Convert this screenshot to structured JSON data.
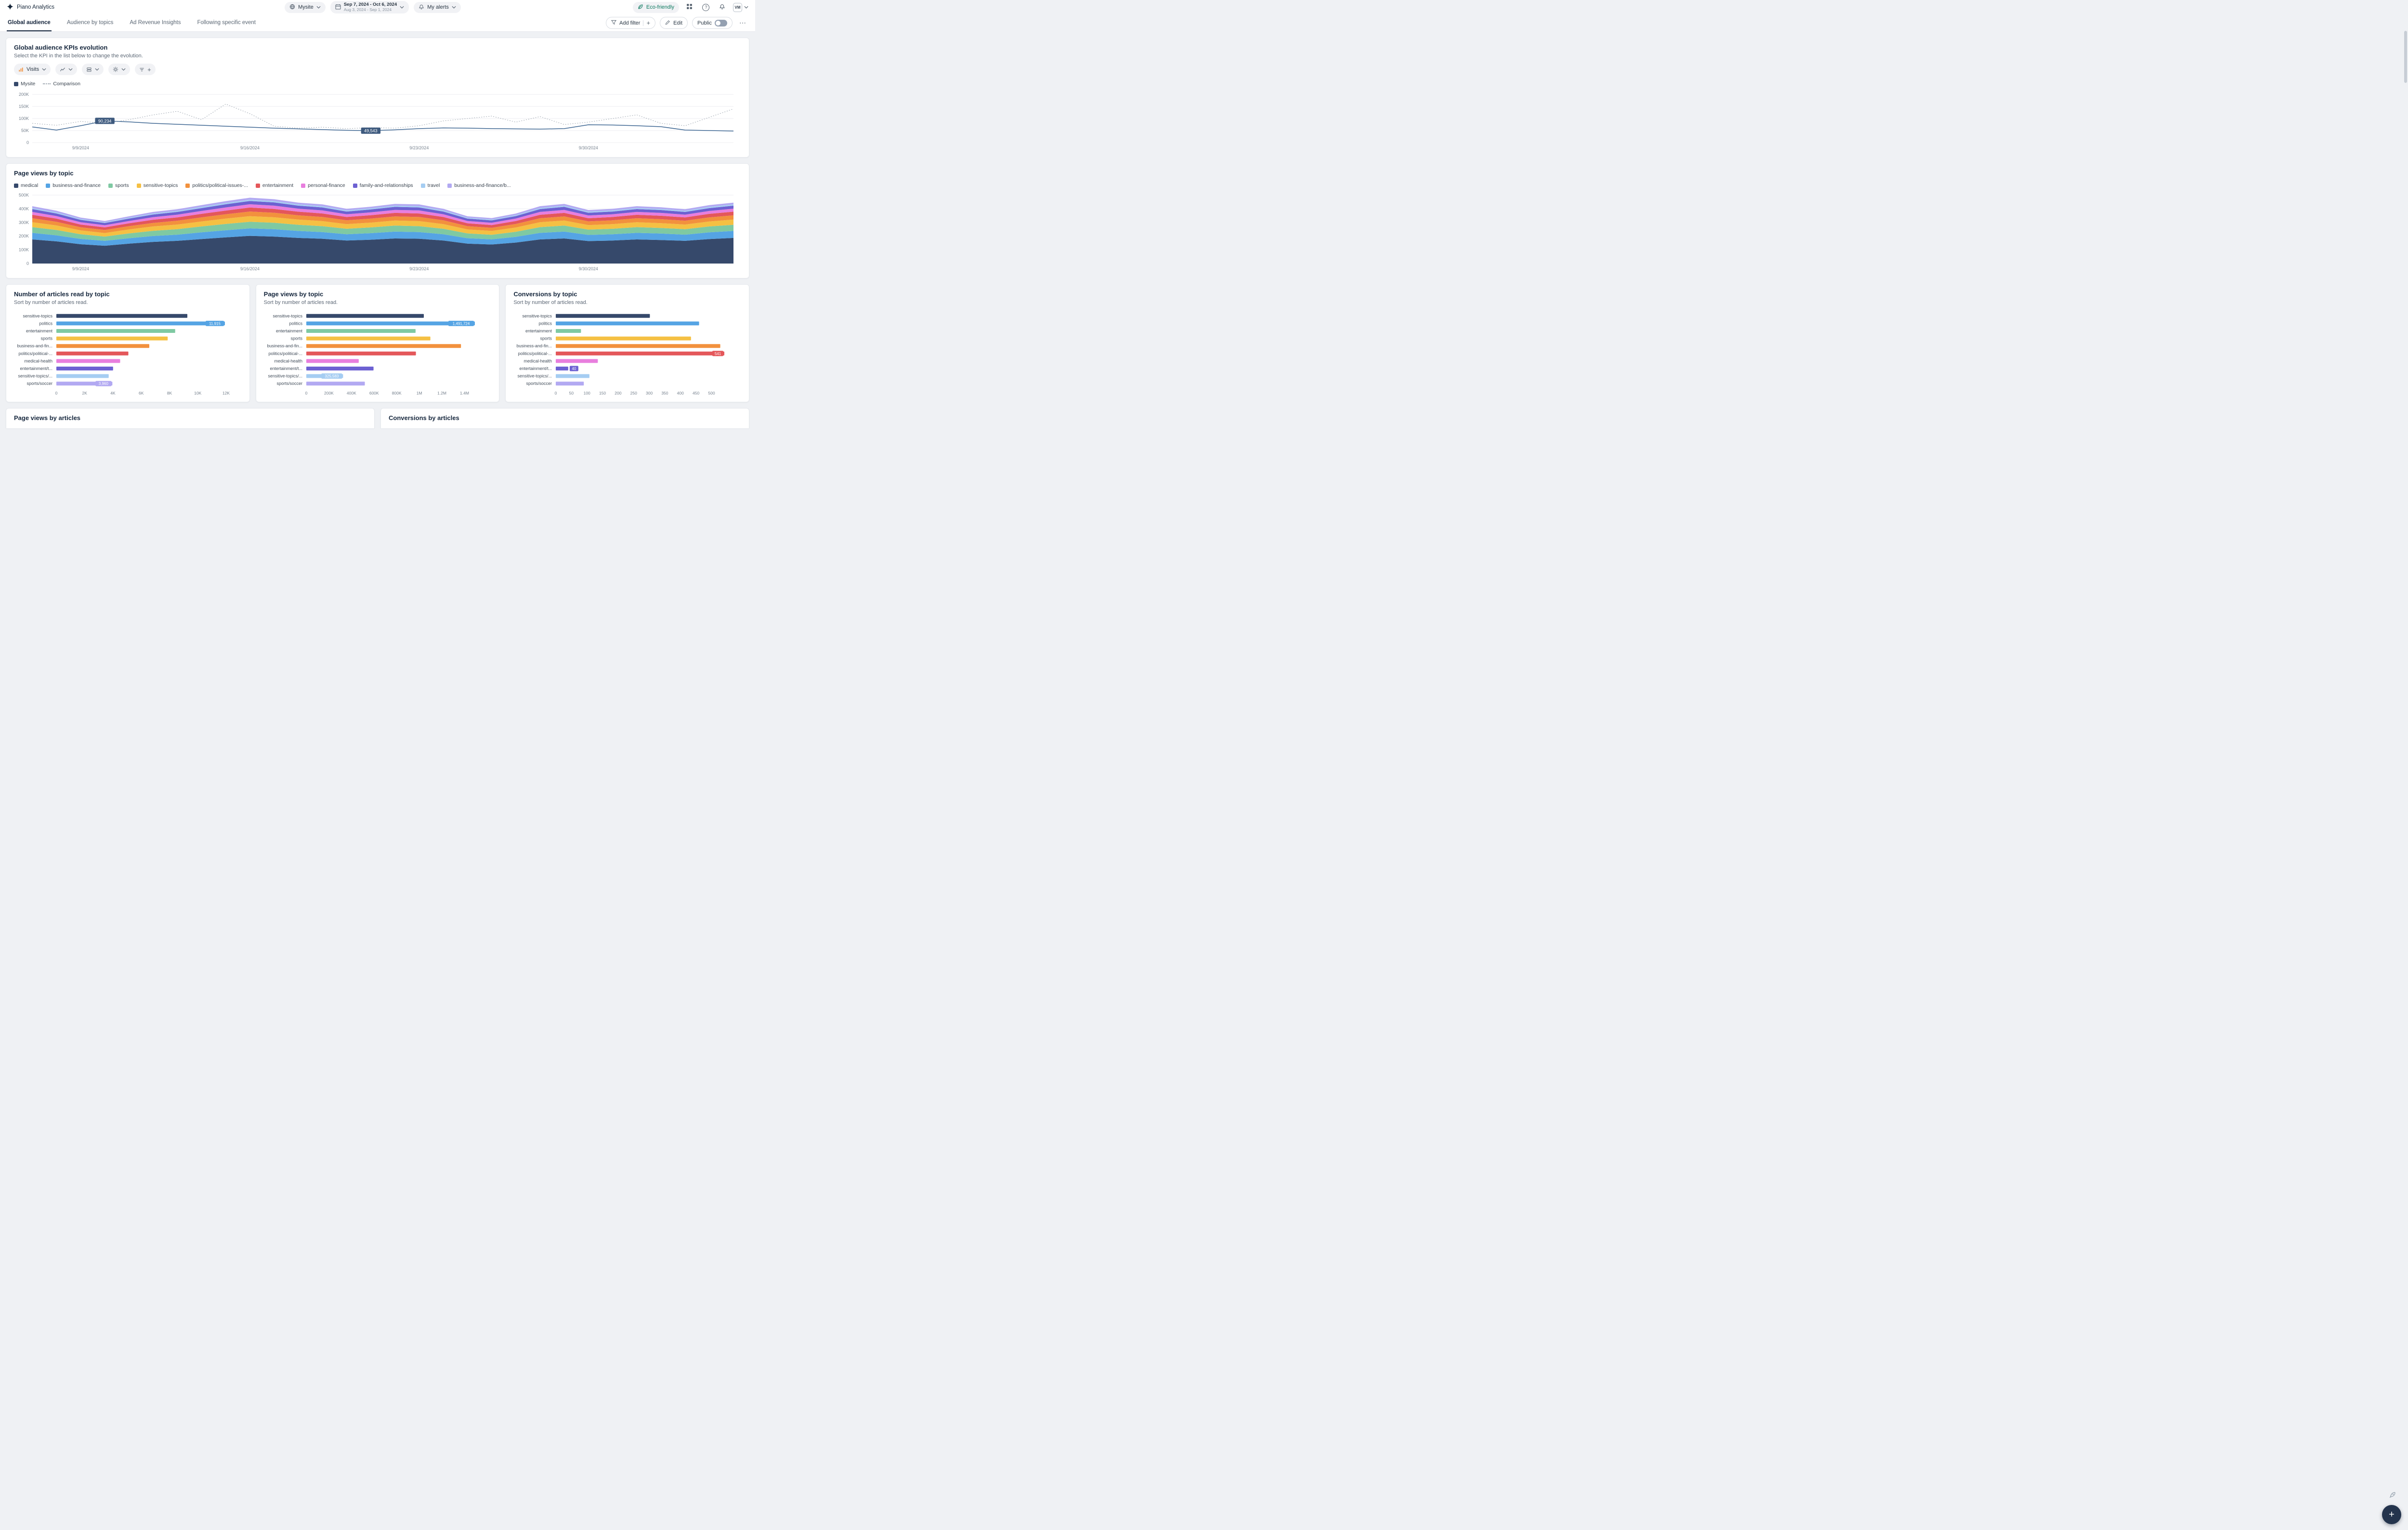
{
  "topbar": {
    "product": "Piano Analytics",
    "site_selector": "Mysite",
    "date_range": {
      "main": "Sep 7, 2024 - Oct 6, 2024",
      "comparison": "Aug 3, 2024 - Sep 1, 2024"
    },
    "alerts_label": "My alerts",
    "eco_badge": "Eco-friendly",
    "avatar_initials": "VM"
  },
  "tabs": [
    {
      "label": "Global audience",
      "active": true
    },
    {
      "label": "Audience by topics",
      "active": false
    },
    {
      "label": "Ad Revenue Insights",
      "active": false
    },
    {
      "label": "Following specific event",
      "active": false
    }
  ],
  "toolbar": {
    "add_filter": "Add filter",
    "edit": "Edit",
    "public_label": "Public",
    "public_toggle_on": false
  },
  "icons": {
    "plus": "+",
    "more": "⋯",
    "help": "?"
  },
  "palette": [
    "#36496b",
    "#55a4e4",
    "#7fc9a2",
    "#f5c043",
    "#f2913d",
    "#e4575a",
    "#e87ede",
    "#6d61d2",
    "#a5cdf2",
    "#b2a9f2"
  ],
  "kpi_card": {
    "title": "Global audience KPIs evolution",
    "subtitle": "Select the KPI in the list below to change the evolution.",
    "kpi_selector_label": "Visits",
    "legend": [
      {
        "label": "Mysite",
        "style": "solid",
        "color": "#36496b"
      },
      {
        "label": "Comparison",
        "style": "dotted",
        "color": "#98a1ab"
      }
    ],
    "chart_data": {
      "type": "line",
      "ylim": [
        0,
        200000
      ],
      "yticks": [
        {
          "v": 0,
          "label": "0"
        },
        {
          "v": 50000,
          "label": "50K"
        },
        {
          "v": 100000,
          "label": "100K"
        },
        {
          "v": 150000,
          "label": "150K"
        },
        {
          "v": 200000,
          "label": "200K"
        }
      ],
      "x_labels": [
        {
          "index": 2,
          "label": "9/9/2024"
        },
        {
          "index": 9,
          "label": "9/16/2024"
        },
        {
          "index": 16,
          "label": "9/23/2024"
        },
        {
          "index": 23,
          "label": "9/30/2024"
        }
      ],
      "series": [
        {
          "name": "Mysite",
          "style": "solid",
          "color": "#3c6591",
          "values": [
            65000,
            52000,
            70000,
            90234,
            86000,
            80000,
            76000,
            72000,
            68000,
            64000,
            60000,
            57000,
            54000,
            51000,
            49543,
            53000,
            58000,
            61000,
            60000,
            58000,
            57000,
            56000,
            58000,
            74000,
            73000,
            70000,
            66000,
            52000,
            50000,
            48000
          ]
        },
        {
          "name": "Comparison",
          "style": "dotted",
          "color": "#9aa3ad",
          "values": [
            80000,
            72000,
            88000,
            80000,
            95000,
            115000,
            130000,
            95000,
            160000,
            120000,
            68000,
            60000,
            64000,
            58000,
            62000,
            60000,
            70000,
            90000,
            100000,
            110000,
            85000,
            108000,
            75000,
            85000,
            100000,
            115000,
            80000,
            70000,
            105000,
            140000
          ]
        }
      ],
      "annotations": [
        {
          "series": "Mysite",
          "index": 3,
          "label": "90,234",
          "color": "#3e5a7e"
        },
        {
          "series": "Mysite",
          "index": 14,
          "label": "49,543",
          "color": "#3e5a7e"
        }
      ]
    }
  },
  "area_card": {
    "title": "Page views by topic",
    "chart_data": {
      "type": "area",
      "stacked": true,
      "ylim": [
        0,
        500000
      ],
      "yticks": [
        {
          "v": 0,
          "label": "0"
        },
        {
          "v": 100000,
          "label": "100K"
        },
        {
          "v": 200000,
          "label": "200K"
        },
        {
          "v": 300000,
          "label": "300K"
        },
        {
          "v": 400000,
          "label": "400K"
        },
        {
          "v": 500000,
          "label": "500K"
        }
      ],
      "x_labels": [
        {
          "index": 2,
          "label": "9/9/2024"
        },
        {
          "index": 9,
          "label": "9/16/2024"
        },
        {
          "index": 16,
          "label": "9/23/2024"
        },
        {
          "index": 23,
          "label": "9/30/2024"
        }
      ],
      "series": [
        {
          "name": "medical",
          "color": "#36496b",
          "values": [
            176000,
            162000,
            141000,
            130000,
            145000,
            158000,
            166000,
            179000,
            191000,
            202000,
            197000,
            187000,
            181000,
            168000,
            174000,
            183000,
            181000,
            168000,
            145000,
            139000,
            153000,
            176000,
            183000,
            164000,
            168000,
            176000,
            172000,
            166000,
            179000,
            187000
          ]
        },
        {
          "name": "business-and-finance",
          "color": "#55a4e4",
          "values": [
            48000,
            44000,
            39000,
            36000,
            40000,
            43000,
            45000,
            49000,
            52000,
            55000,
            54000,
            51000,
            49000,
            46000,
            48000,
            50000,
            49000,
            46000,
            40000,
            38000,
            42000,
            48000,
            50000,
            45000,
            46000,
            48000,
            47000,
            45000,
            49000,
            51000
          ]
        },
        {
          "name": "sports",
          "color": "#7fc9a2",
          "values": [
            42000,
            39000,
            34000,
            31000,
            35000,
            38000,
            40000,
            43000,
            46000,
            48000,
            47000,
            45000,
            43000,
            40000,
            42000,
            44000,
            43000,
            40000,
            35000,
            33000,
            37000,
            42000,
            44000,
            39000,
            40000,
            42000,
            41000,
            40000,
            43000,
            45000
          ]
        },
        {
          "name": "sensitive-topics",
          "color": "#f5c043",
          "values": [
            36000,
            33000,
            28000,
            26000,
            29000,
            32000,
            34000,
            36000,
            39000,
            41000,
            40000,
            38000,
            37000,
            34000,
            35000,
            37000,
            37000,
            34000,
            29000,
            28000,
            31000,
            36000,
            37000,
            33000,
            34000,
            36000,
            35000,
            34000,
            36000,
            38000
          ]
        },
        {
          "name": "politics/political-issues-...",
          "color": "#f2913d",
          "values": [
            29000,
            27000,
            23000,
            22000,
            24000,
            26000,
            28000,
            30000,
            32000,
            34000,
            33000,
            31000,
            30000,
            28000,
            29000,
            30000,
            30000,
            28000,
            24000,
            23000,
            26000,
            29000,
            30000,
            27000,
            28000,
            29000,
            29000,
            28000,
            30000,
            31000
          ]
        },
        {
          "name": "entertainment",
          "color": "#e4575a",
          "values": [
            25000,
            23000,
            20000,
            19000,
            21000,
            23000,
            24000,
            26000,
            27000,
            29000,
            28000,
            27000,
            26000,
            24000,
            25000,
            26000,
            26000,
            24000,
            21000,
            20000,
            22000,
            25000,
            26000,
            23000,
            24000,
            25000,
            25000,
            24000,
            26000,
            27000
          ]
        },
        {
          "name": "personal-finance",
          "color": "#e87ede",
          "values": [
            21000,
            19000,
            17000,
            16000,
            17000,
            19000,
            20000,
            21000,
            23000,
            24000,
            24000,
            22000,
            22000,
            20000,
            21000,
            22000,
            22000,
            20000,
            17000,
            17000,
            18000,
            21000,
            22000,
            20000,
            20000,
            21000,
            21000,
            20000,
            21000,
            22000
          ]
        },
        {
          "name": "family-and-relationships",
          "color": "#6d61d2",
          "values": [
            21000,
            19000,
            17000,
            16000,
            17000,
            19000,
            20000,
            21000,
            23000,
            24000,
            24000,
            22000,
            22000,
            20000,
            21000,
            22000,
            22000,
            20000,
            17000,
            17000,
            18000,
            21000,
            22000,
            20000,
            20000,
            21000,
            21000,
            20000,
            21000,
            22000
          ]
        },
        {
          "name": "travel",
          "color": "#a5cdf2",
          "values": [
            8000,
            8000,
            7000,
            6000,
            7000,
            8000,
            8000,
            9000,
            9000,
            10000,
            9000,
            9000,
            9000,
            8000,
            8000,
            9000,
            9000,
            8000,
            7000,
            7000,
            7000,
            8000,
            9000,
            8000,
            8000,
            8000,
            8000,
            8000,
            9000,
            9000
          ]
        },
        {
          "name": "business-and-finance/b...",
          "color": "#b2a9f2",
          "values": [
            13000,
            12000,
            10000,
            9000,
            10000,
            11000,
            12000,
            13000,
            14000,
            14000,
            14000,
            13000,
            13000,
            12000,
            12000,
            13000,
            13000,
            12000,
            10000,
            10000,
            11000,
            13000,
            13000,
            12000,
            12000,
            13000,
            12000,
            12000,
            13000,
            13000
          ]
        }
      ]
    }
  },
  "bar_cards": [
    {
      "title": "Number of articles read by topic",
      "subtitle": "Sort by number of articles read.",
      "chart_data": {
        "type": "bar",
        "orientation": "horizontal",
        "categories": [
          "sensitive-topics",
          "politics",
          "entertainment",
          "sports",
          "business-and-fin...",
          "politics/political-...",
          "medical-health",
          "entertainment/t...",
          "sensitive-topics/...",
          "sports/soccer"
        ],
        "values": [
          9260,
          11915,
          8400,
          7870,
          6570,
          5090,
          4510,
          4010,
          3700,
          3960
        ],
        "xticks": [
          {
            "v": 0,
            "label": "0"
          },
          {
            "v": 2000,
            "label": "2K"
          },
          {
            "v": 4000,
            "label": "4K"
          },
          {
            "v": 6000,
            "label": "6K"
          },
          {
            "v": 8000,
            "label": "8K"
          },
          {
            "v": 10000,
            "label": "10K"
          },
          {
            "v": 12000,
            "label": "12K"
          }
        ],
        "labeled": [
          {
            "index": 1,
            "label": "11,915"
          },
          {
            "index": 9,
            "label": "3,960"
          }
        ]
      }
    },
    {
      "title": "Page views by topic",
      "subtitle": "Sort by number of articles read.",
      "chart_data": {
        "type": "bar",
        "orientation": "horizontal",
        "categories": [
          "sensitive-topics",
          "politics",
          "entertainment",
          "sports",
          "business-and-fin...",
          "politics/political-...",
          "medical-health",
          "entertainment/t...",
          "sensitive-topics/...",
          "sports/soccer"
        ],
        "values": [
          1040000,
          1491724,
          967000,
          1098000,
          1369000,
          970000,
          464000,
          595000,
          325583,
          518000
        ],
        "xticks": [
          {
            "v": 0,
            "label": "0"
          },
          {
            "v": 200000,
            "label": "200K"
          },
          {
            "v": 400000,
            "label": "400K"
          },
          {
            "v": 600000,
            "label": "600K"
          },
          {
            "v": 800000,
            "label": "800K"
          },
          {
            "v": 1000000,
            "label": "1M"
          },
          {
            "v": 1200000,
            "label": "1.2M"
          },
          {
            "v": 1400000,
            "label": "1.4M"
          }
        ],
        "labeled": [
          {
            "index": 1,
            "label": "1,491,724"
          },
          {
            "index": 8,
            "label": "325,583"
          }
        ]
      }
    },
    {
      "title": "Conversions by topic",
      "subtitle": "Sort by number of articles read.",
      "chart_data": {
        "type": "bar",
        "orientation": "horizontal",
        "categories": [
          "sensitive-topics",
          "politics",
          "entertainment",
          "sports",
          "business-and-fin...",
          "politics/political-...",
          "medical-health",
          "entertainment/t...",
          "sensitive-topics/...",
          "sports/soccer"
        ],
        "values": [
          302,
          460,
          81,
          434,
          528,
          541,
          135,
          40,
          108,
          90
        ],
        "xticks": [
          {
            "v": 0,
            "label": "0"
          },
          {
            "v": 50,
            "label": "50"
          },
          {
            "v": 100,
            "label": "100"
          },
          {
            "v": 150,
            "label": "150"
          },
          {
            "v": 200,
            "label": "200"
          },
          {
            "v": 250,
            "label": "250"
          },
          {
            "v": 300,
            "label": "300"
          },
          {
            "v": 350,
            "label": "350"
          },
          {
            "v": 400,
            "label": "400"
          },
          {
            "v": 450,
            "label": "450"
          },
          {
            "v": 500,
            "label": "500"
          }
        ],
        "labeled": [
          {
            "index": 5,
            "label": "541"
          },
          {
            "index": 7,
            "label": "40"
          }
        ]
      }
    }
  ],
  "partial_cards": [
    {
      "title": "Page views by articles"
    },
    {
      "title": "Conversions by articles"
    }
  ],
  "fab_label": "+"
}
